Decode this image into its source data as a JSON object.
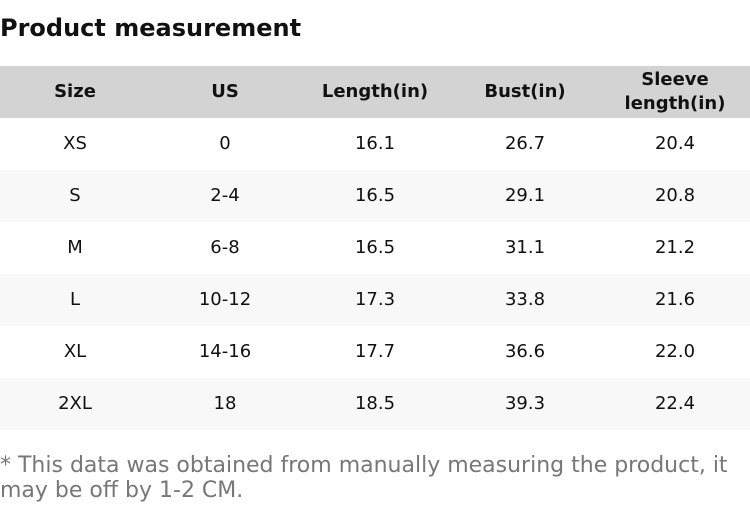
{
  "title": "Product measurement",
  "table": {
    "headers": [
      "Size",
      "US",
      "Length(in)",
      "Bust(in)",
      "Sleeve length(in)"
    ],
    "rows": [
      [
        "XS",
        "0",
        "16.1",
        "26.7",
        "20.4"
      ],
      [
        "S",
        "2-4",
        "16.5",
        "29.1",
        "20.8"
      ],
      [
        "M",
        "6-8",
        "16.5",
        "31.1",
        "21.2"
      ],
      [
        "L",
        "10-12",
        "17.3",
        "33.8",
        "21.6"
      ],
      [
        "XL",
        "14-16",
        "17.7",
        "36.6",
        "22.0"
      ],
      [
        "2XL",
        "18",
        "18.5",
        "39.3",
        "22.4"
      ]
    ]
  },
  "note": "* This data was obtained from manually measuring the product, it may be off by 1-2 CM."
}
